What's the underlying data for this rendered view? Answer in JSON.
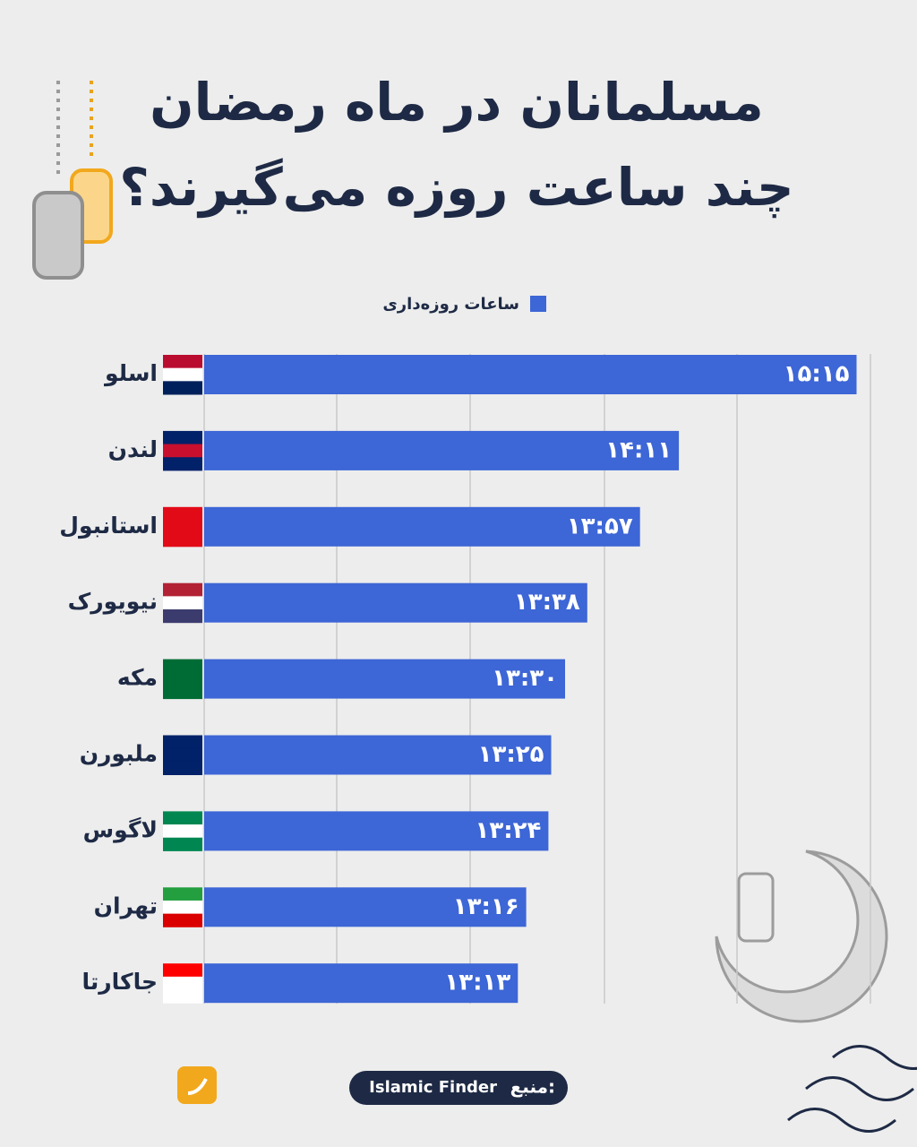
{
  "chart_data": {
    "type": "bar",
    "orientation": "horizontal",
    "title": [
      "مسلمانان در ماه رمضان",
      "چند ساعت روزه می‌گیرند؟"
    ],
    "categories": [
      "اسلو",
      "لندن",
      "استانبول",
      "نیویورک",
      "مکه",
      "ملبورن",
      "لاگوس",
      "تهران",
      "جاکارتا"
    ],
    "series": [
      {
        "name": "ساعات روزه‌داری",
        "color": "#3d66d6",
        "values": [
          915,
          851,
          837,
          818,
          810,
          805,
          804,
          796,
          793
        ],
        "value_labels": [
          "۱۵:۱۵",
          "۱۴:۱۱",
          "۱۳:۵۷",
          "۱۳:۳۸",
          "۱۳:۳۰",
          "۱۳:۲۵",
          "۱۳:۲۴",
          "۱۳:۱۶",
          "۱۳:۱۳"
        ]
      }
    ],
    "xlim": [
      680,
      920
    ],
    "grid": true
  },
  "source": {
    "label": "منبع:",
    "name": "Islamic Finder"
  }
}
